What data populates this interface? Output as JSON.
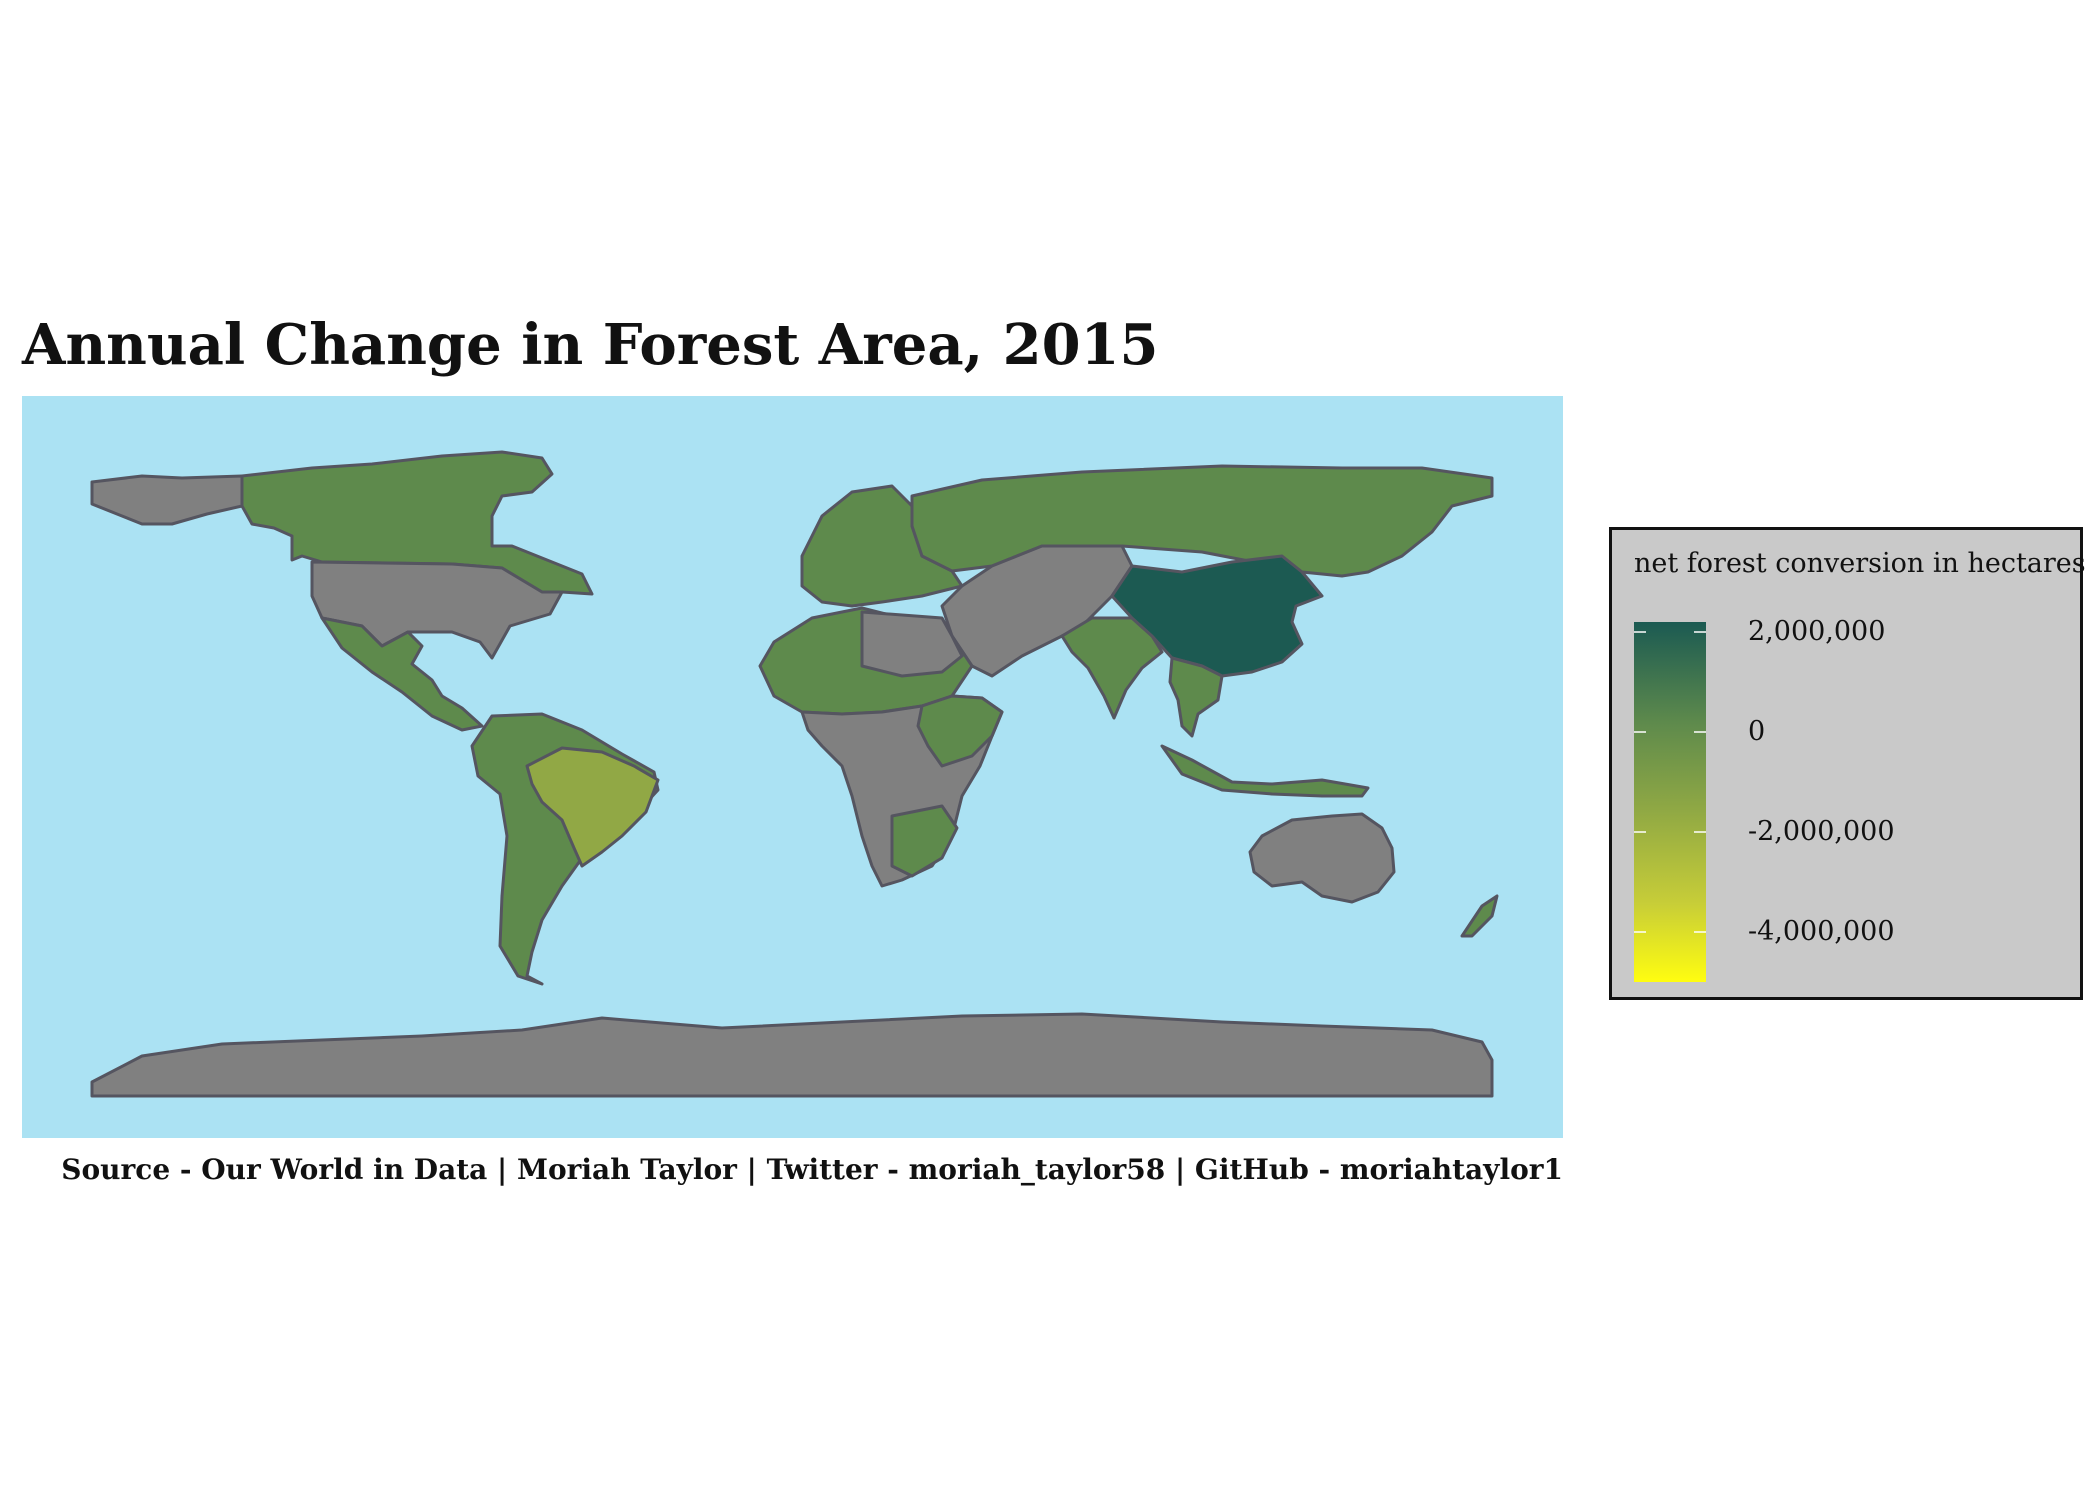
{
  "title": "Annual Change in Forest Area, 2015",
  "caption": "Source - Our World in Data  |  Moriah Taylor  |  Twitter - moriah_taylor58  |  GitHub - moriahtaylor1",
  "legend": {
    "title": "net forest conversion in hectares",
    "labels": [
      "2,000,000",
      "0",
      "-2,000,000",
      "-4,000,000"
    ],
    "gradient_colors": [
      "#1b5a52",
      "#5e8a4c",
      "#8fa844",
      "#c7cd38",
      "#fffd10"
    ]
  },
  "colors": {
    "ocean": "#abe2f3",
    "no_data": "#808080",
    "border": "#555560",
    "china": "#1c5a52",
    "moderate_gain": "#5e8a4c",
    "brazil": "#91a845",
    "legend_bg": "#c9c9c9"
  },
  "map_regions": [
    {
      "name": "Greenland",
      "status": "no data"
    },
    {
      "name": "Canada",
      "status": "forest gain"
    },
    {
      "name": "United States",
      "status": "no data"
    },
    {
      "name": "Mexico & Central America",
      "status": "forest gain"
    },
    {
      "name": "South America",
      "status": "forest gain"
    },
    {
      "name": "Brazil",
      "status": "forest loss"
    },
    {
      "name": "Europe",
      "status": "forest gain"
    },
    {
      "name": "Russia",
      "status": "forest gain"
    },
    {
      "name": "Middle East & Central Asia",
      "status": "no data"
    },
    {
      "name": "India",
      "status": "forest gain"
    },
    {
      "name": "China",
      "status": "strong forest gain"
    },
    {
      "name": "Southeast Asia",
      "status": "forest gain"
    },
    {
      "name": "North Africa",
      "status": "mixed"
    },
    {
      "name": "Sub-Saharan Africa",
      "status": "mixed"
    },
    {
      "name": "Australia",
      "status": "no data"
    },
    {
      "name": "New Zealand",
      "status": "forest gain"
    },
    {
      "name": "Antarctica",
      "status": "no data"
    }
  ]
}
